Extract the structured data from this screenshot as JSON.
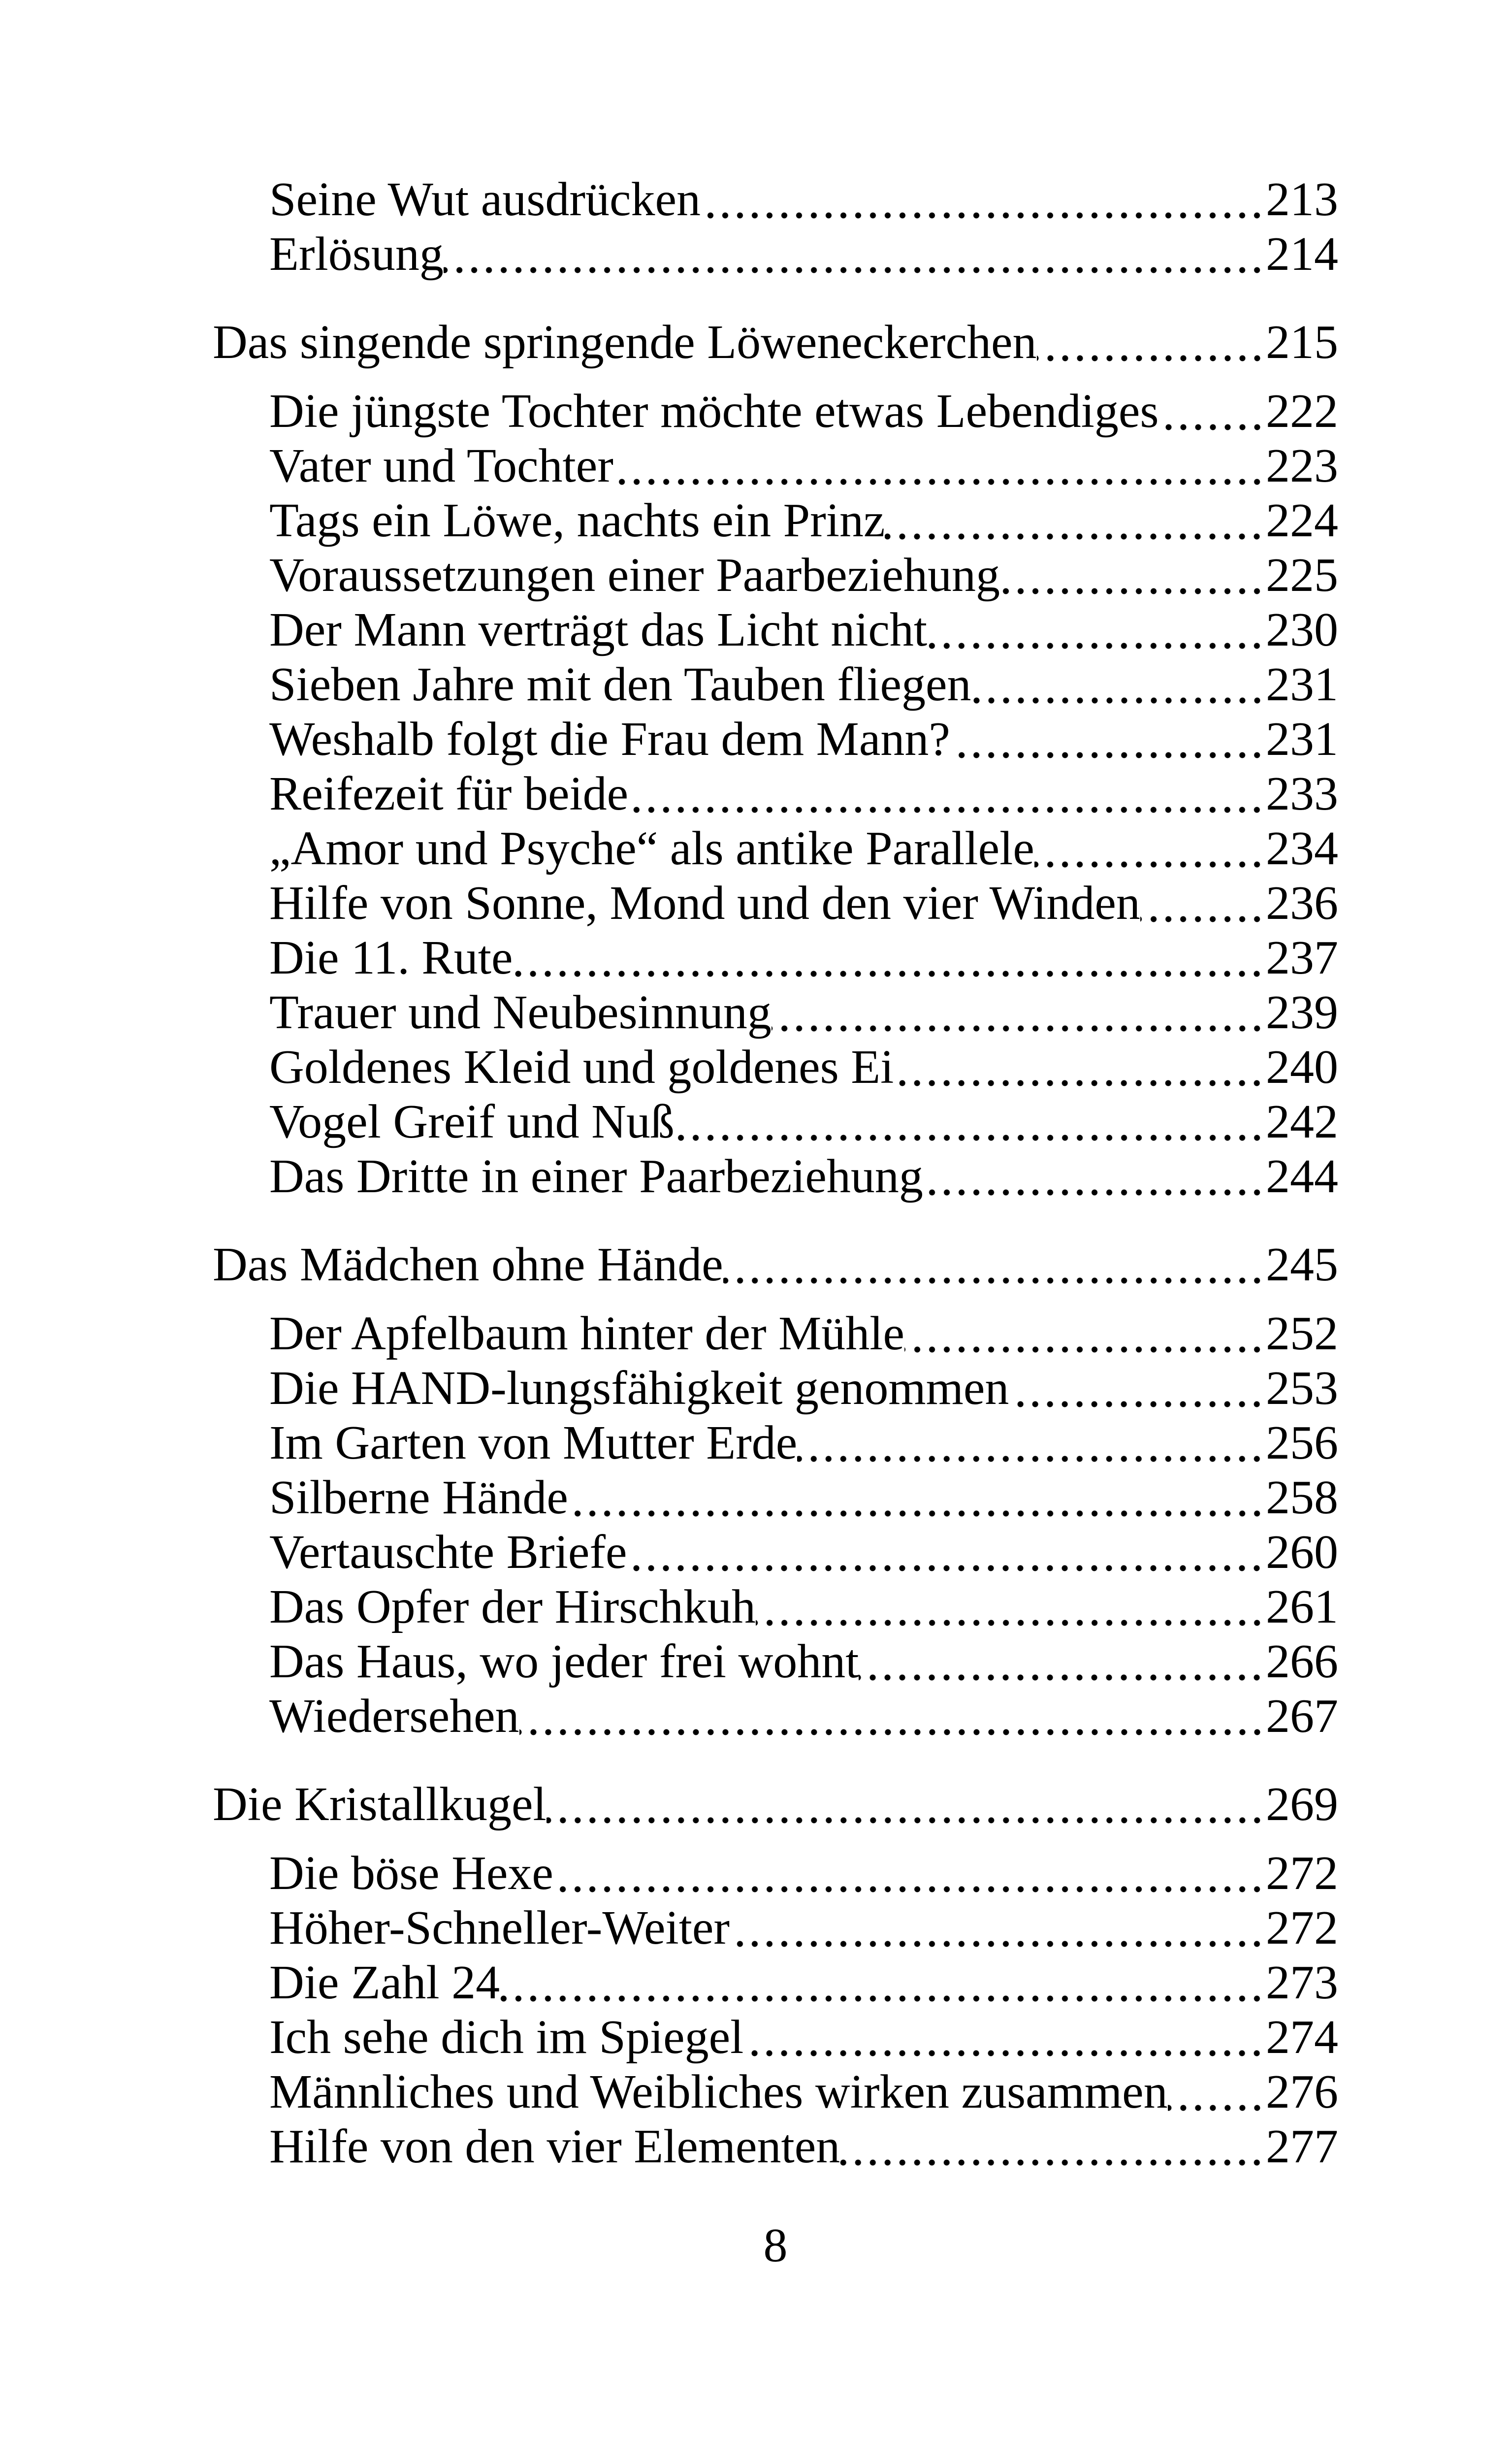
{
  "colors": {
    "text": "#000000",
    "background": "#ffffff"
  },
  "page_number": "8",
  "toc": {
    "entries": [
      {
        "level": "sub",
        "title": "Seine Wut ausdrücken",
        "page": "213"
      },
      {
        "level": "sub",
        "title": "Erlösung",
        "page": "214"
      },
      {
        "level": "chapter",
        "title": "Das singende springende Löweneckerchen",
        "page": "215"
      },
      {
        "level": "sub",
        "title": "Die jüngste Tochter möchte etwas Lebendiges",
        "page": "222"
      },
      {
        "level": "sub",
        "title": "Vater und Tochter",
        "page": "223"
      },
      {
        "level": "sub",
        "title": "Tags ein Löwe, nachts ein Prinz",
        "page": "224"
      },
      {
        "level": "sub",
        "title": "Voraussetzungen einer Paarbeziehung",
        "page": "225"
      },
      {
        "level": "sub",
        "title": "Der Mann verträgt das Licht nicht",
        "page": "230"
      },
      {
        "level": "sub",
        "title": "Sieben Jahre mit den Tauben fliegen",
        "page": "231"
      },
      {
        "level": "sub",
        "title": "Weshalb folgt die Frau dem Mann?",
        "page": "231"
      },
      {
        "level": "sub",
        "title": "Reifezeit für beide",
        "page": "233"
      },
      {
        "level": "sub",
        "title": "„Amor und Psyche“ als antike Parallele",
        "page": "234"
      },
      {
        "level": "sub",
        "title": "Hilfe von Sonne, Mond und den vier Winden",
        "page": "236"
      },
      {
        "level": "sub",
        "title": "Die 11. Rute",
        "page": "237"
      },
      {
        "level": "sub",
        "title": "Trauer und Neubesinnung",
        "page": "239"
      },
      {
        "level": "sub",
        "title": "Goldenes Kleid und goldenes Ei",
        "page": "240"
      },
      {
        "level": "sub",
        "title": "Vogel Greif und Nuß",
        "page": "242"
      },
      {
        "level": "sub",
        "title": "Das Dritte in einer Paarbeziehung",
        "page": "244"
      },
      {
        "level": "chapter",
        "title": "Das Mädchen ohne Hände",
        "page": "245"
      },
      {
        "level": "sub",
        "title": "Der Apfelbaum hinter der Mühle",
        "page": "252"
      },
      {
        "level": "sub",
        "title": "Die HAND-lungsfähigkeit genommen",
        "page": "253"
      },
      {
        "level": "sub",
        "title": "Im Garten von Mutter Erde",
        "page": "256"
      },
      {
        "level": "sub",
        "title": "Silberne Hände",
        "page": "258"
      },
      {
        "level": "sub",
        "title": "Vertauschte Briefe",
        "page": "260"
      },
      {
        "level": "sub",
        "title": "Das Opfer der Hirschkuh",
        "page": "261"
      },
      {
        "level": "sub",
        "title": "Das Haus, wo jeder frei wohnt",
        "page": "266"
      },
      {
        "level": "sub",
        "title": "Wiedersehen",
        "page": "267"
      },
      {
        "level": "chapter",
        "title": "Die Kristallkugel",
        "page": "269"
      },
      {
        "level": "sub",
        "title": "Die böse Hexe",
        "page": "272"
      },
      {
        "level": "sub",
        "title": "Höher-Schneller-Weiter",
        "page": "272"
      },
      {
        "level": "sub",
        "title": "Die Zahl 24",
        "page": "273"
      },
      {
        "level": "sub",
        "title": "Ich sehe dich im Spiegel",
        "page": "274"
      },
      {
        "level": "sub",
        "title": "Männliches und Weibliches wirken zusammen",
        "page": "276"
      },
      {
        "level": "sub",
        "title": "Hilfe von den vier Elementen",
        "page": "277"
      }
    ]
  }
}
